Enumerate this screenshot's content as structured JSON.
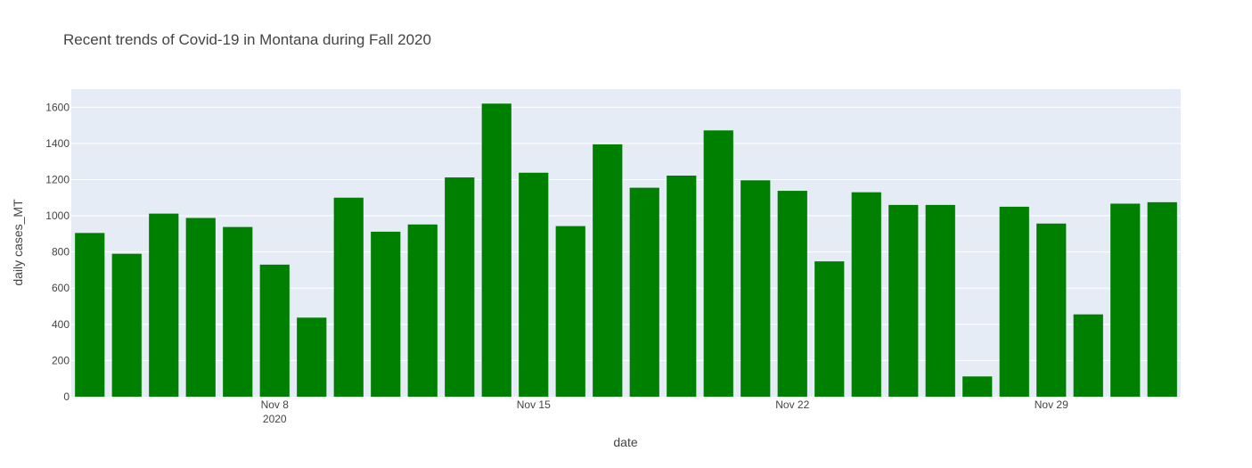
{
  "chart_data": {
    "type": "bar",
    "title": "Recent trends of Covid-19 in Montana during Fall 2020",
    "xlabel": "date",
    "ylabel": "daily cases_MT",
    "ylim": [
      0,
      1700
    ],
    "y_ticks": [
      0,
      200,
      400,
      600,
      800,
      1000,
      1200,
      1400,
      1600
    ],
    "x_ticks": [
      {
        "date": "2020-11-08",
        "label": "Nov 8",
        "sublabel": "2020"
      },
      {
        "date": "2020-11-15",
        "label": "Nov 15",
        "sublabel": ""
      },
      {
        "date": "2020-11-22",
        "label": "Nov 22",
        "sublabel": ""
      },
      {
        "date": "2020-11-29",
        "label": "Nov 29",
        "sublabel": ""
      }
    ],
    "x": [
      "2020-11-03",
      "2020-11-04",
      "2020-11-05",
      "2020-11-06",
      "2020-11-07",
      "2020-11-08",
      "2020-11-09",
      "2020-11-10",
      "2020-11-11",
      "2020-11-12",
      "2020-11-13",
      "2020-11-14",
      "2020-11-15",
      "2020-11-16",
      "2020-11-17",
      "2020-11-18",
      "2020-11-19",
      "2020-11-20",
      "2020-11-21",
      "2020-11-22",
      "2020-11-23",
      "2020-11-24",
      "2020-11-25",
      "2020-11-26",
      "2020-11-27",
      "2020-11-28",
      "2020-11-29",
      "2020-11-30",
      "2020-12-01",
      "2020-12-02"
    ],
    "values": [
      905,
      790,
      1012,
      988,
      938,
      730,
      437,
      1100,
      912,
      952,
      1212,
      1620,
      1238,
      943,
      1395,
      1155,
      1222,
      1472,
      1196,
      1138,
      748,
      1130,
      1060,
      1060,
      112,
      1050,
      957,
      455,
      1067,
      1075
    ],
    "grid": true,
    "colors": {
      "bar": "#008000",
      "plot_bg": "#e5ecf6",
      "grid": "#ffffff",
      "text": "#444444"
    }
  }
}
